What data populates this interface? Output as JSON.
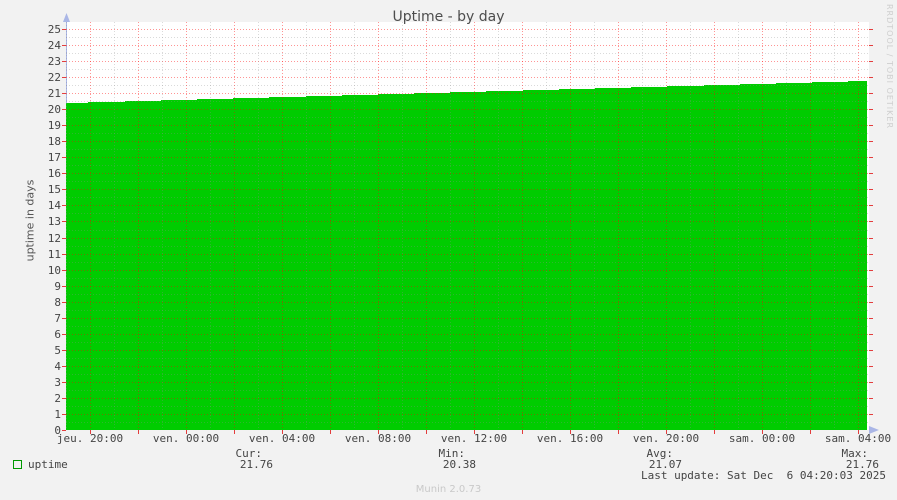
{
  "title": "Uptime - by day",
  "ylabel": "uptime in days",
  "watermark": "RRDTOOL / TOBI OETIKER",
  "footer": "Munin 2.0.73",
  "colors": {
    "series": "#00cc00",
    "series_border": "#009900",
    "page_background": "#f2f2f2",
    "plot_background": "#ffffff",
    "major_grid": "#ff0000",
    "minor_grid": "#8c8c8c",
    "axis_arrow": "#aab6e6",
    "tick_mark": "#dd0000",
    "text": "#444444",
    "muted_text": "#c9c9c9"
  },
  "legend": {
    "series_label": "uptime",
    "columns": [
      {
        "label": "Cur:",
        "value": "21.76"
      },
      {
        "label": "Min:",
        "value": "20.38"
      },
      {
        "label": "Avg:",
        "value": "21.07"
      },
      {
        "label": "Max:",
        "value": "21.76"
      }
    ],
    "last_update": "Last update: Sat Dec  6 04:20:03 2025"
  },
  "chart_data": {
    "type": "area",
    "title": "Uptime - by day",
    "xlabel": "",
    "ylabel": "uptime in days",
    "ylim": [
      0,
      25
    ],
    "y_tick_step": 1,
    "grid": "on",
    "legend_position": "bottom-left",
    "x_ticks": [
      "jeu. 20:00",
      "ven. 00:00",
      "ven. 04:00",
      "ven. 08:00",
      "ven. 12:00",
      "ven. 16:00",
      "ven. 20:00",
      "sam. 00:00",
      "sam. 04:00"
    ],
    "series": [
      {
        "name": "uptime",
        "color": "#00cc00",
        "points": [
          {
            "x": "jeu. 19:00",
            "y": 20.38
          },
          {
            "x": "jeu. 20:00",
            "y": 20.42
          },
          {
            "x": "ven. 00:00",
            "y": 20.58
          },
          {
            "x": "ven. 04:00",
            "y": 20.75
          },
          {
            "x": "ven. 08:00",
            "y": 20.92
          },
          {
            "x": "ven. 12:00",
            "y": 21.08
          },
          {
            "x": "ven. 16:00",
            "y": 21.25
          },
          {
            "x": "ven. 20:00",
            "y": 21.41
          },
          {
            "x": "sam. 00:00",
            "y": 21.58
          },
          {
            "x": "sam. 04:00",
            "y": 21.74
          },
          {
            "x": "sam. 04:20",
            "y": 21.76
          }
        ]
      }
    ],
    "stats": {
      "cur": 21.76,
      "min": 20.38,
      "avg": 21.07,
      "max": 21.76
    }
  }
}
